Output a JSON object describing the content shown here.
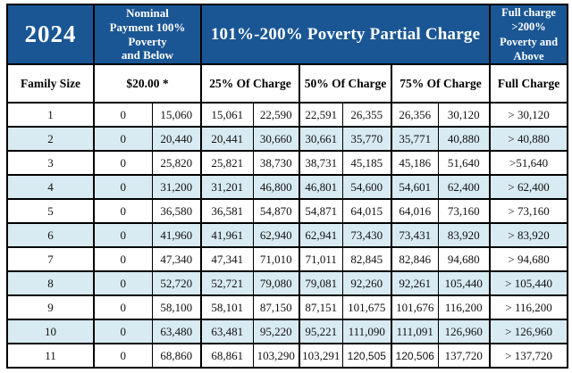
{
  "chart_data": {
    "type": "table",
    "title": "2024",
    "top_header": {
      "year": "2024",
      "nominal": "Nominal\nPayment 100%\nPoverty\nand Below",
      "partial": "101%-200% Poverty Partial Charge",
      "full": "Full charge\n>200%\nPoverty and\nAbove"
    },
    "sub_header": {
      "family_size": "Family Size",
      "nominal_amount": "$20.00 *",
      "charge_25": "25% Of Charge",
      "charge_50": "50% Of Charge",
      "charge_75": "75% Of Charge",
      "full_charge": "Full Charge"
    },
    "rows": [
      [
        "1",
        "0",
        "15,060",
        "15,061",
        "22,590",
        "22,591",
        "26,355",
        "26,356",
        "30,120",
        "> 30,120"
      ],
      [
        "2",
        "0",
        "20,440",
        "20,441",
        "30,660",
        "30,661",
        "35,770",
        "35,771",
        "40,880",
        "> 40,880"
      ],
      [
        "3",
        "0",
        "25,820",
        "25,821",
        "38,730",
        "38,731",
        "45,185",
        "45,186",
        "51,640",
        ">51,640"
      ],
      [
        "4",
        "0",
        "31,200",
        "31,201",
        "46,800",
        "46,801",
        "54,600",
        "54,601",
        "62,400",
        "> 62,400"
      ],
      [
        "5",
        "0",
        "36,580",
        "36,581",
        "54,870",
        "54,871",
        "64,015",
        "64,016",
        "73,160",
        "> 73,160"
      ],
      [
        "6",
        "0",
        "41,960",
        "41,961",
        "62,940",
        "62,941",
        "73,430",
        "73,431",
        "83,920",
        "> 83,920"
      ],
      [
        "7",
        "0",
        "47,340",
        "47,341",
        "71,010",
        "71,011",
        "82,845",
        "82,846",
        "94,680",
        "> 94,680"
      ],
      [
        "8",
        "0",
        "52,720",
        "52,721",
        "79,080",
        "79,081",
        "92,260",
        "92,261",
        "105,440",
        "> 105,440"
      ],
      [
        "9",
        "0",
        "58,100",
        "58,101",
        "87,150",
        "87,151",
        "101,675",
        "101,676",
        "116,200",
        "> 116,200"
      ],
      [
        "10",
        "0",
        "63,480",
        "63,481",
        "95,220",
        "95,221",
        "111,090",
        "111,091",
        "126,960",
        "> 126,960"
      ],
      [
        "11",
        "0",
        "68,860",
        "68,861",
        "103,290",
        "103,291",
        "120,505",
        "120,506",
        "137,720",
        "> 137,720"
      ]
    ],
    "colors": {
      "header_bg": "#1A5694",
      "header_text": "#FFFFFF",
      "alt_row_bg": "#D8EAF2",
      "border": "#000000"
    }
  }
}
